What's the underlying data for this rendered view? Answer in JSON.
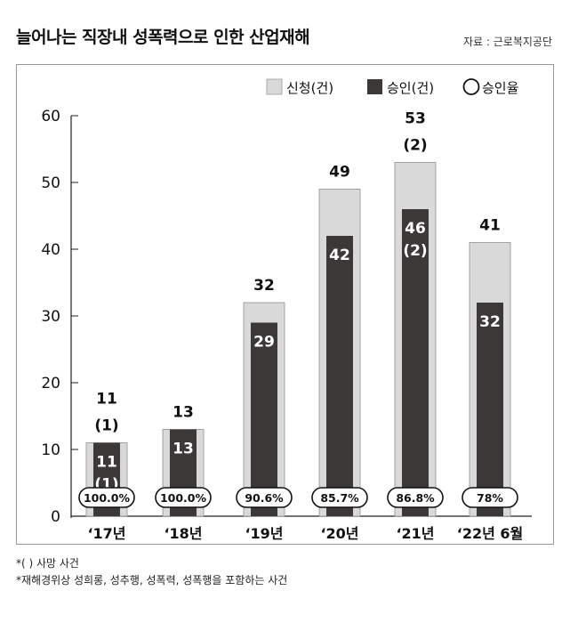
{
  "title": "늘어나는 직장내 성폭력으로 인한 산업재해",
  "source": "자료 : 근로복지공단",
  "legend": {
    "applied": "신청(건)",
    "approved": "승인(건)",
    "rate": "승인율"
  },
  "notes": [
    "*( ) 사망 사건",
    "*재해경위상 성희롱, 성추행, 성폭력, 성폭행을 포함하는 사건"
  ],
  "colors": {
    "applied": "#d9d9d9",
    "approved": "#3d3838"
  },
  "chart_data": {
    "type": "bar",
    "categories": [
      "‘17년",
      "‘18년",
      "‘19년",
      "‘20년",
      "‘21년",
      "‘22년 6월"
    ],
    "series": [
      {
        "name": "신청(건)",
        "values": [
          11,
          13,
          32,
          49,
          53,
          41
        ],
        "labels": [
          "11",
          "13",
          "32",
          "49",
          "53",
          "41"
        ],
        "death": [
          "(1)",
          "",
          "",
          "",
          "(2)",
          ""
        ]
      },
      {
        "name": "승인(건)",
        "values": [
          11,
          13,
          29,
          42,
          46,
          32
        ],
        "labels": [
          "11",
          "13",
          "29",
          "42",
          "46",
          "32"
        ],
        "death": [
          "(1)",
          "",
          "",
          "",
          "(2)",
          ""
        ]
      }
    ],
    "rate_labels": [
      "100.0%",
      "100.0%",
      "90.6%",
      "85.7%",
      "86.8%",
      "78%"
    ],
    "yticks": [
      "0",
      "10",
      "20",
      "30",
      "40",
      "50",
      "60"
    ],
    "ylim": [
      0,
      60
    ]
  }
}
